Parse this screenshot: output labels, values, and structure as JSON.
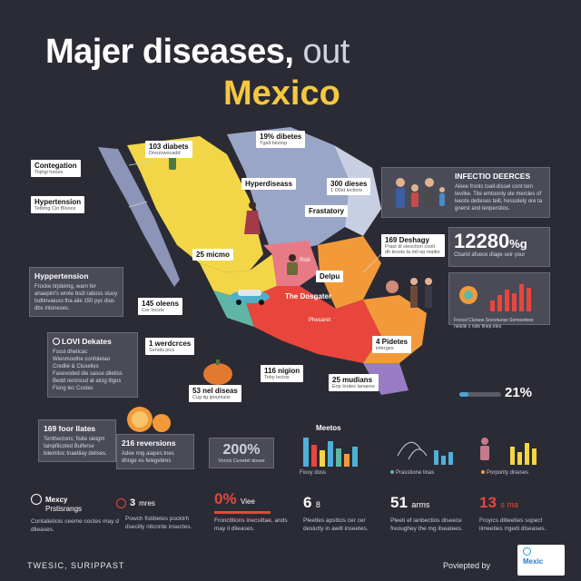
{
  "header": {
    "title_main": "Majer diseases,",
    "title_tail": "out",
    "title_sub": "Mexico"
  },
  "map_labels": {
    "diabetes_103": {
      "title": "103 diabets",
      "sub": "Dnozswocadd"
    },
    "diabetes_19": {
      "title": "19% dibetes",
      "sub": "Tgalt biooop"
    },
    "hyper_disease": {
      "title": "Hyperdiseass",
      "sub": ""
    },
    "diseases_300": {
      "title": "300 dieses",
      "sub": "1 O0st lectiors"
    },
    "frastatory": {
      "title": "Frastatory",
      "sub": ""
    },
    "micmo_25": {
      "title": "25 micmo",
      "sub": ""
    },
    "desbay": {
      "title": "169 Deshagy",
      "sub": "Prast di sleoction cooit dh tessts ta mil ep maitio"
    },
    "delpu": {
      "title": "Delpu",
      "sub": ""
    },
    "the_dosgater": {
      "title": "The Dosgater",
      "sub": ""
    },
    "rioli": {
      "title": "Rioli",
      "sub": ""
    },
    "phesaret": {
      "title": "Phesaret",
      "sub": ""
    },
    "oleens_145": {
      "title": "145 oleens",
      "sub": "Cer locuts"
    },
    "werdcrces": {
      "title": "1 werdcrces",
      "sub": "Sondis jecs"
    },
    "net_diseases": {
      "title": "53 nel diseas",
      "sub": "Cug lig ipouniaiis"
    },
    "nigion_116": {
      "title": "116 nigion",
      "sub": "Tohy lectos"
    },
    "mudians_25": {
      "title": "25 mudians",
      "sub": "Eop loutes lanaeos"
    },
    "pidetes_4": {
      "title": "4 Pidetes",
      "sub": "inferges"
    }
  },
  "left_labels": {
    "contegation": {
      "title": "Contegation",
      "sub": "Tiqhgi hones"
    },
    "hypertension1": {
      "title": "Hypertension",
      "sub": "Tetlimg Cio Blooce"
    },
    "hypertension2": {
      "title": "Hyppertension",
      "sub": "Frocke tirjdeimg, warn fer anaepinl's wrote bsdl raboss sluuy tsdtinvaiuso tha aile 150 pyc dius dbs intoneses."
    }
  },
  "lovi_box": {
    "title": "LOVI Dekates",
    "items": [
      "Fossl dheticac",
      "Wienmoothe confoletao",
      "Credlie & Cluselles",
      "Fasexoded die sasce diletiss",
      "Bedd reronssd at alcig ltigos",
      "Fisng tec Costec"
    ]
  },
  "bottom_left_boxes": {
    "fool_ilates": {
      "title": "169 foor llates",
      "sub": "Tenthectons; fisite sietgm tainpfilcoted Bulferse bilemitoc tnaetiiay delises."
    },
    "reversions": {
      "title": "216 reversions",
      "sub": "Adee mig aiapes tnes dhnge es felegebres"
    }
  },
  "infection_box": {
    "title": "INFECTIO DEERCES",
    "sub": "Aikee fronls toall-dissel cont tem tevilke. Tite emtoonly ole mercles of leeste delteses teill, hessolely ore ta gnerst and lenperstios."
  },
  "big_stat": {
    "value": "12280",
    "unit": "%g",
    "sub": "Cbarid afuece dlage seir your"
  },
  "mini_chart_caption": "Focosl Cluraos Srecetuoss Somsedoes nelelie s rsite finep etes",
  "progress": {
    "value": "21%",
    "fraction": 0.21
  },
  "stat_200": {
    "value": "200%",
    "sub": "Vonck Cesetel dosse"
  },
  "meetos_chart": {
    "title": "Meetos",
    "caption": "Fiooy doss"
  },
  "persione_chart": {
    "caption": "Prasstione linas"
  },
  "porpority_chart": {
    "caption": "Porpority diseses"
  },
  "bottom_stats": [
    {
      "icon": "brain-icon",
      "num": "Mexcy",
      "head": "Prstisrangs",
      "sub": "Contalietiois ceeme coctes may d dlieases.",
      "color": "#ffffff"
    },
    {
      "icon": "virus-icon",
      "num": "3",
      "head": "mres",
      "sub": "Powch fistibetes pocktrh dsecilly nitcnnte insectes.",
      "color": "#ffffff"
    },
    {
      "icon": "",
      "num": "0%",
      "head": "Viee",
      "sub": "Fronctltions inecsittae, ands may il dlieases.",
      "color": "#e8463c"
    },
    {
      "icon": "",
      "num": "6",
      "head": "8",
      "sub": "Pleetles apsttcis cer cer deslutty in awill inseetes.",
      "color": "#ffffff"
    },
    {
      "icon": "",
      "num": "51",
      "head": "arms",
      "sub": "Pleeti ef ianbectios diseece freoughey the mg ilseatees.",
      "color": "#ffffff"
    },
    {
      "icon": "",
      "num": "13",
      "head": "s ma",
      "sub": "Froyics dliteeties sopect iimeeties rrgedi dlseases.",
      "color": "#e8463c"
    }
  ],
  "footer": {
    "left": "TWESIC, SURIPPAST",
    "right": "Poviepted by",
    "logo": "Mexic"
  }
}
